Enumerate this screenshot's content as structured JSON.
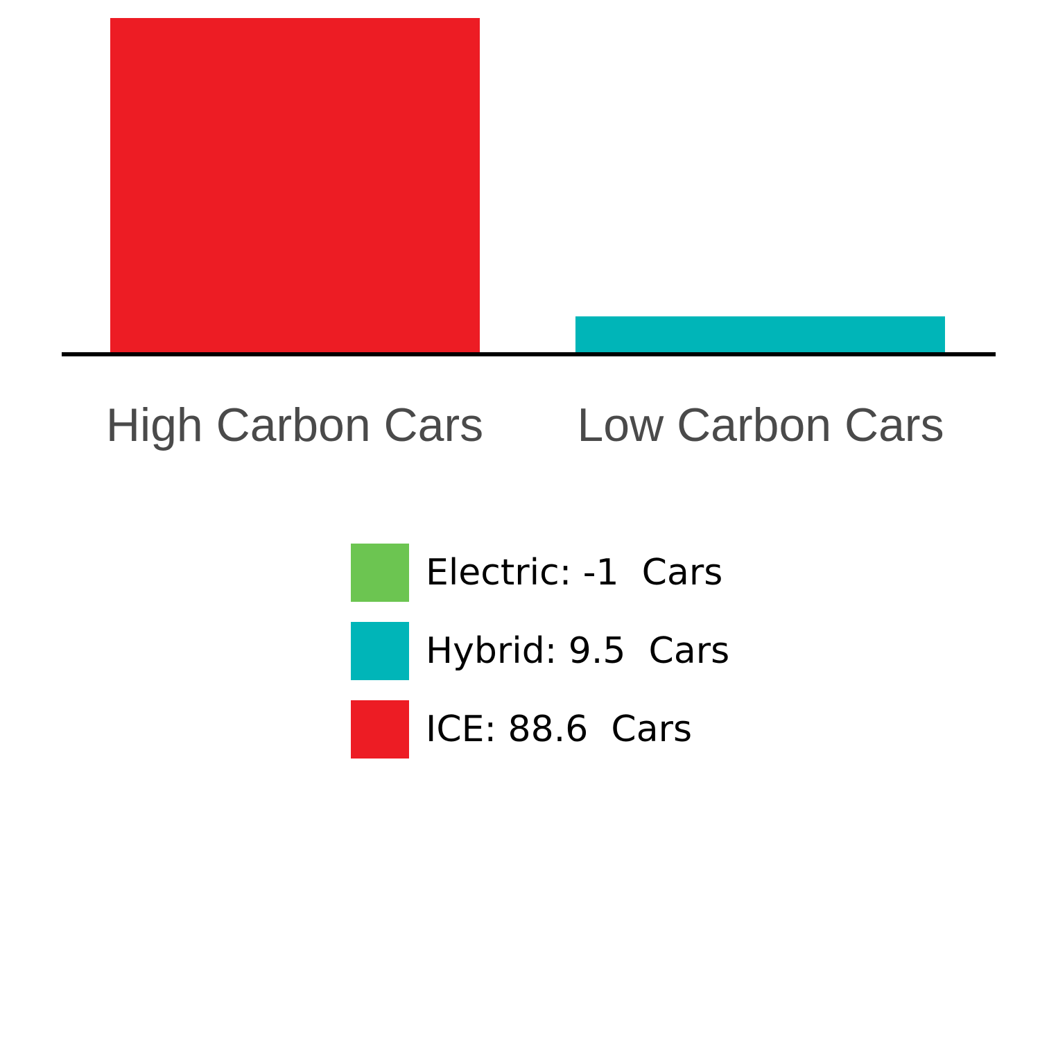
{
  "chart_data": {
    "type": "bar",
    "stacked": true,
    "categories": [
      "High Carbon Cars",
      "Low Carbon Cars"
    ],
    "series": [
      {
        "name": "Electric",
        "color": "#6cc551",
        "values": [
          0,
          -1
        ]
      },
      {
        "name": "Hybrid",
        "color": "#00b5b8",
        "values": [
          0,
          9.5
        ]
      },
      {
        "name": "ICE",
        "color": "#ed1c24",
        "values": [
          88.6,
          0
        ]
      }
    ],
    "ylim": [
      0,
      88.6
    ],
    "grid": false,
    "legend_position": "bottom",
    "legend": [
      {
        "text": "Electric: -1  Cars",
        "color": "#6cc551"
      },
      {
        "text": "Hybrid: 9.5  Cars",
        "color": "#00b5b8"
      },
      {
        "text": "ICE: 88.6  Cars",
        "color": "#ed1c24"
      }
    ]
  }
}
